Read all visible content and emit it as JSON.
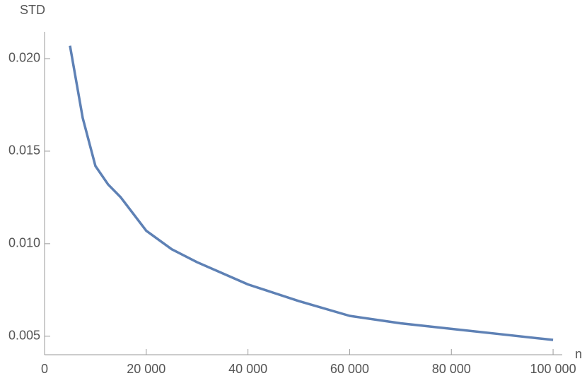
{
  "chart_data": {
    "type": "line",
    "x_label": "n",
    "y_label": "STD",
    "x": [
      5000,
      7500,
      10000,
      12500,
      15000,
      20000,
      25000,
      30000,
      40000,
      50000,
      60000,
      70000,
      80000,
      90000,
      100000
    ],
    "series": [
      {
        "name": "STD",
        "color": "#5e81b5",
        "values": [
          0.0207,
          0.0168,
          0.0142,
          0.0132,
          0.0125,
          0.0107,
          0.0097,
          0.009,
          0.0078,
          0.0069,
          0.0061,
          0.0057,
          0.0054,
          0.0051,
          0.0048
        ]
      }
    ],
    "xlim": [
      0,
      101800
    ],
    "ylim": [
      0.004,
      0.02145
    ],
    "xticks": [
      0,
      {
        "value": 20000,
        "label": "20 000"
      },
      {
        "value": 40000,
        "label": "40 000"
      },
      {
        "value": 60000,
        "label": "60 000"
      },
      {
        "value": 80000,
        "label": "80 000"
      },
      {
        "value": 100000,
        "label": "100 000"
      }
    ],
    "yticks": [
      0.005,
      {
        "value": 0.01,
        "label": "0.010"
      },
      0.015,
      {
        "value": 0.02,
        "label": "0.020"
      }
    ]
  }
}
